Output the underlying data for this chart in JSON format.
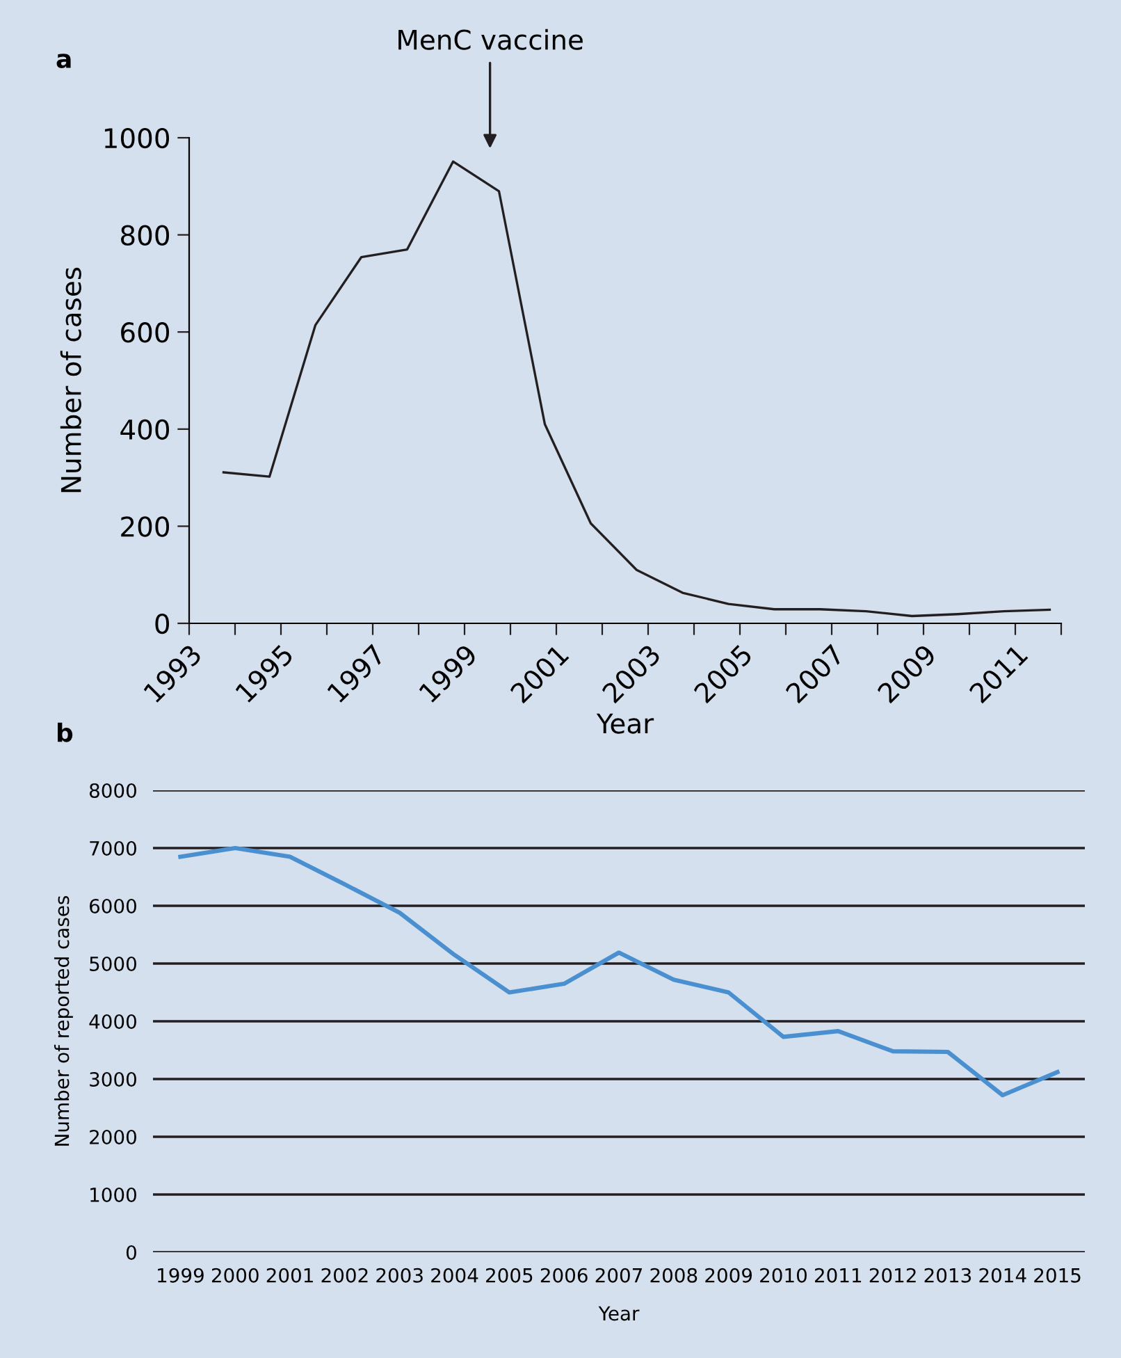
{
  "chart_data": [
    {
      "type": "line",
      "title": "a",
      "xlabel": "Year",
      "ylabel": "Number of cases",
      "grid": false,
      "marker": "none",
      "line_style": "solid",
      "x": [
        1993.75,
        1994.75,
        1995.75,
        1996.75,
        1997.75,
        1998.75,
        1999.75,
        2000.75,
        2001.75,
        2002.75,
        2003.75,
        2004.75,
        2005.75,
        2006.75,
        2007.75,
        2008.75,
        2009.75,
        2010.75,
        2011.75
      ],
      "series": [
        {
          "color": "#231f20",
          "values": [
            311,
            302,
            614,
            754,
            770,
            951,
            890,
            410,
            206,
            110,
            63,
            40,
            29,
            29,
            25,
            15,
            19,
            25,
            28
          ]
        }
      ],
      "xlim": [
        1993,
        2012
      ],
      "ylim": [
        0,
        1000
      ],
      "yticks": [
        0,
        200,
        400,
        600,
        800,
        1000
      ],
      "xticks": [
        1993,
        {
          "value": 1994,
          "label": null
        },
        1995,
        {
          "value": 1996,
          "label": null
        },
        1997,
        {
          "value": 1998,
          "label": null
        },
        1999,
        {
          "value": 2000,
          "label": null
        },
        2001,
        {
          "value": 2002,
          "label": null
        },
        2003,
        {
          "value": 2004,
          "label": null
        },
        2005,
        {
          "value": 2006,
          "label": null
        },
        2007,
        {
          "value": 2008,
          "label": null
        },
        2009,
        {
          "value": 2010,
          "label": null
        },
        2011,
        {
          "value": 2012,
          "label": null
        }
      ],
      "annotations": [
        "MenC vaccine"
      ]
    },
    {
      "type": "line",
      "title": "b",
      "xlabel": "Year",
      "ylabel": "Number of reported cases",
      "grid": "y",
      "marker": "none",
      "line_style": "solid",
      "categories": [
        "1999",
        "2000",
        "2001",
        "2002",
        "2003",
        "2004",
        "2005",
        "2006",
        "2007",
        "2008",
        "2009",
        "2010",
        "2011",
        "2012",
        "2013",
        "2014",
        "2015"
      ],
      "series": [
        {
          "color": "#4a90d0",
          "values": [
            6850,
            7000,
            6850,
            6370,
            5880,
            5150,
            4500,
            4650,
            5190,
            4720,
            4500,
            3730,
            3830,
            3480,
            3470,
            2720,
            3120
          ]
        }
      ],
      "ylim": [
        0,
        8000
      ],
      "yticks": [
        0,
        1000,
        2000,
        3000,
        4000,
        5000,
        6000,
        7000,
        8000
      ]
    }
  ]
}
